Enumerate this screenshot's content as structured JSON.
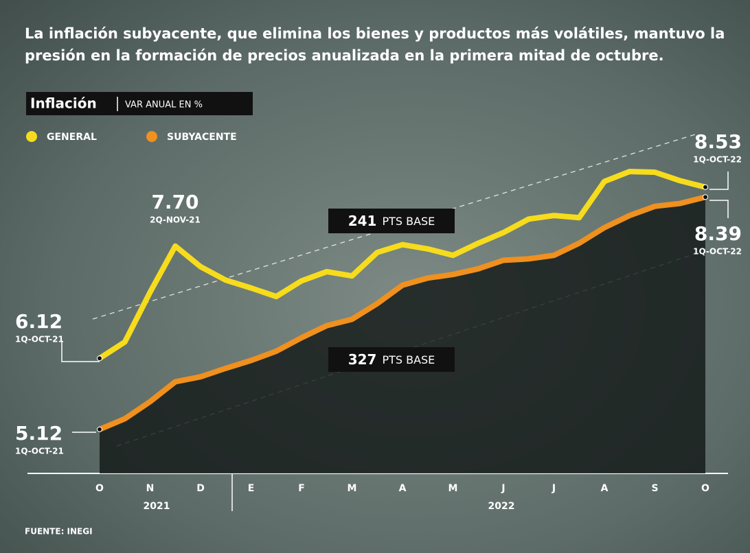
{
  "chart_data": {
    "type": "line",
    "title": [
      "La inflación subyacente, que elimina los bienes y productos más volátiles, mantuvo la",
      "presión en la formación de precios anualizada en la primera mitad de octubre."
    ],
    "label": "Inflación",
    "unit": "VAR ANUAL EN %",
    "categories": [
      "O",
      null,
      "N",
      null,
      "D",
      null,
      "E",
      null,
      "F",
      null,
      "M",
      null,
      "A",
      null,
      "M",
      null,
      "J",
      null,
      "J",
      null,
      "A",
      null,
      "S",
      null,
      "O"
    ],
    "years": [
      "2021",
      "2022"
    ],
    "series": [
      {
        "name": "GENERAL",
        "color": "#f6dc1c",
        "values": [
          6.12,
          6.35,
          7.05,
          7.7,
          7.41,
          7.22,
          7.11,
          6.99,
          7.21,
          7.34,
          7.28,
          7.61,
          7.72,
          7.66,
          7.57,
          7.74,
          7.89,
          8.08,
          8.13,
          8.1,
          8.61,
          8.75,
          8.74,
          8.62,
          8.53
        ],
        "value_labels": [
          "6.12",
          null,
          null,
          "7.70",
          null,
          null,
          null,
          null,
          null,
          null,
          null,
          null,
          null,
          null,
          null,
          null,
          null,
          null,
          null,
          null,
          null,
          null,
          null,
          null,
          "8.53"
        ]
      },
      {
        "name": "SUBYACENTE",
        "color": "#f0901e",
        "values": [
          5.12,
          5.27,
          5.51,
          5.79,
          5.86,
          5.98,
          6.09,
          6.22,
          6.41,
          6.58,
          6.67,
          6.89,
          7.15,
          7.25,
          7.3,
          7.38,
          7.5,
          7.52,
          7.57,
          7.74,
          7.96,
          8.13,
          8.26,
          8.3,
          8.39
        ],
        "value_labels": [
          "5.12",
          null,
          null,
          null,
          null,
          null,
          null,
          null,
          null,
          null,
          null,
          null,
          null,
          null,
          null,
          null,
          null,
          null,
          null,
          null,
          null,
          null,
          null,
          null,
          "8.39"
        ]
      }
    ],
    "date_labels": [
      "1Q-OCT-21",
      "2Q-NOV-21",
      "1Q-OCT-22",
      "1Q-OCT-22",
      "1Q-OCT-21"
    ],
    "differences": [
      {
        "value": 241,
        "label": "PTS BASE"
      },
      {
        "value": 327,
        "label": "PTS BASE"
      }
    ],
    "ylim": [
      4.5,
      9.3
    ],
    "source": "FUENTE: INEGI"
  }
}
